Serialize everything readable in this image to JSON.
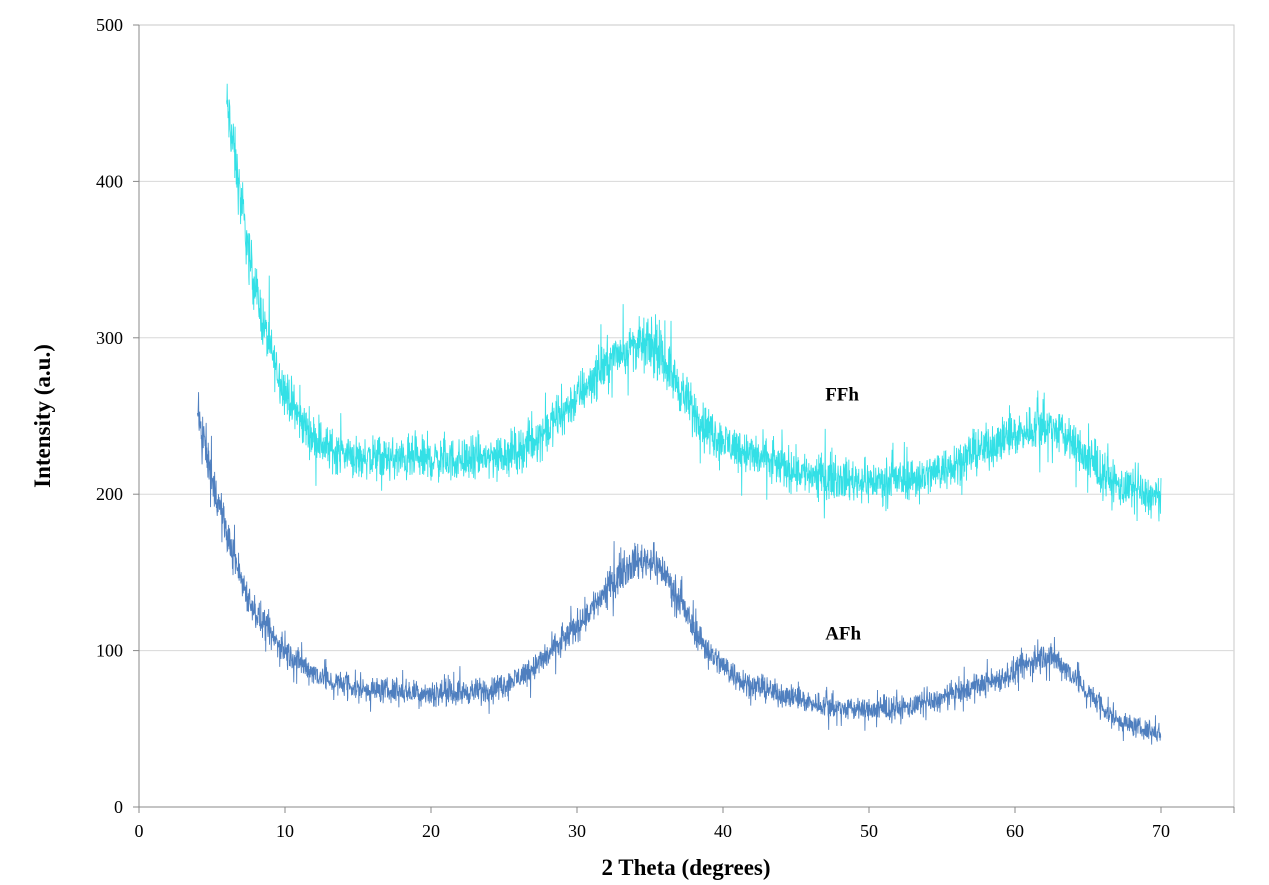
{
  "chart_data": {
    "type": "line",
    "xlabel": "2 Theta (degrees)",
    "ylabel": "Intensity (a.u.)",
    "xlim": [
      0,
      75
    ],
    "ylim": [
      0,
      500
    ],
    "x_ticks": [
      0,
      10,
      20,
      30,
      40,
      50,
      60,
      70
    ],
    "y_ticks": [
      0,
      100,
      200,
      300,
      400,
      500
    ],
    "grid": "horizontal",
    "legend": "none",
    "noise_amplitude": 12,
    "series": [
      {
        "name": "FFh",
        "color": "#33e0e6",
        "x_range": [
          6,
          70
        ],
        "points": [
          [
            6,
            450
          ],
          [
            6.5,
            420
          ],
          [
            7,
            385
          ],
          [
            7.5,
            355
          ],
          [
            8,
            330
          ],
          [
            8.5,
            310
          ],
          [
            9,
            292
          ],
          [
            9.5,
            278
          ],
          [
            10,
            266
          ],
          [
            11,
            248
          ],
          [
            12,
            236
          ],
          [
            13,
            229
          ],
          [
            14,
            226
          ],
          [
            15,
            224
          ],
          [
            16,
            223
          ],
          [
            18,
            222
          ],
          [
            20,
            222
          ],
          [
            22,
            222
          ],
          [
            24,
            224
          ],
          [
            26,
            228
          ],
          [
            27,
            234
          ],
          [
            28,
            242
          ],
          [
            29,
            252
          ],
          [
            30,
            262
          ],
          [
            31,
            273
          ],
          [
            32,
            283
          ],
          [
            33,
            291
          ],
          [
            34,
            295
          ],
          [
            35,
            295
          ],
          [
            36,
            285
          ],
          [
            37,
            268
          ],
          [
            38,
            253
          ],
          [
            39,
            241
          ],
          [
            40,
            234
          ],
          [
            42,
            225
          ],
          [
            44,
            218
          ],
          [
            46,
            213
          ],
          [
            48,
            210
          ],
          [
            50,
            208
          ],
          [
            52,
            209
          ],
          [
            54,
            212
          ],
          [
            55,
            216
          ],
          [
            56,
            221
          ],
          [
            58,
            230
          ],
          [
            60,
            238
          ],
          [
            61,
            242
          ],
          [
            62,
            244
          ],
          [
            63,
            240
          ],
          [
            64,
            232
          ],
          [
            65,
            222
          ],
          [
            66,
            213
          ],
          [
            67,
            206
          ],
          [
            68,
            202
          ],
          [
            69,
            199
          ],
          [
            70,
            197
          ]
        ]
      },
      {
        "name": "AFh",
        "color": "#4f7fbf",
        "x_range": [
          4,
          70
        ],
        "points": [
          [
            4,
            250
          ],
          [
            4.5,
            232
          ],
          [
            5,
            210
          ],
          [
            5.5,
            192
          ],
          [
            6,
            175
          ],
          [
            6.5,
            160
          ],
          [
            7,
            146
          ],
          [
            7.5,
            134
          ],
          [
            8,
            124
          ],
          [
            9,
            110
          ],
          [
            10,
            100
          ],
          [
            11,
            92
          ],
          [
            12,
            86
          ],
          [
            13,
            81
          ],
          [
            14,
            78
          ],
          [
            15,
            76
          ],
          [
            16,
            75
          ],
          [
            18,
            74
          ],
          [
            20,
            73
          ],
          [
            22,
            73
          ],
          [
            24,
            75
          ],
          [
            25,
            78
          ],
          [
            26,
            83
          ],
          [
            27,
            89
          ],
          [
            28,
            97
          ],
          [
            29,
            106
          ],
          [
            30,
            116
          ],
          [
            31,
            127
          ],
          [
            32,
            139
          ],
          [
            33,
            150
          ],
          [
            34,
            157
          ],
          [
            35,
            158
          ],
          [
            36,
            150
          ],
          [
            37,
            132
          ],
          [
            38,
            114
          ],
          [
            39,
            100
          ],
          [
            40,
            90
          ],
          [
            41,
            83
          ],
          [
            42,
            78
          ],
          [
            44,
            72
          ],
          [
            46,
            67
          ],
          [
            48,
            63
          ],
          [
            50,
            62
          ],
          [
            52,
            63
          ],
          [
            54,
            66
          ],
          [
            55,
            69
          ],
          [
            56,
            73
          ],
          [
            58,
            79
          ],
          [
            60,
            86
          ],
          [
            61,
            92
          ],
          [
            62,
            97
          ],
          [
            63,
            93
          ],
          [
            64,
            84
          ],
          [
            65,
            73
          ],
          [
            66,
            63
          ],
          [
            67,
            56
          ],
          [
            68,
            52
          ],
          [
            69,
            49
          ],
          [
            70,
            47
          ]
        ]
      }
    ],
    "annotations": [
      {
        "text": "FFh",
        "x": 47,
        "y": 260
      },
      {
        "text": "AFh",
        "x": 47,
        "y": 107
      }
    ]
  }
}
